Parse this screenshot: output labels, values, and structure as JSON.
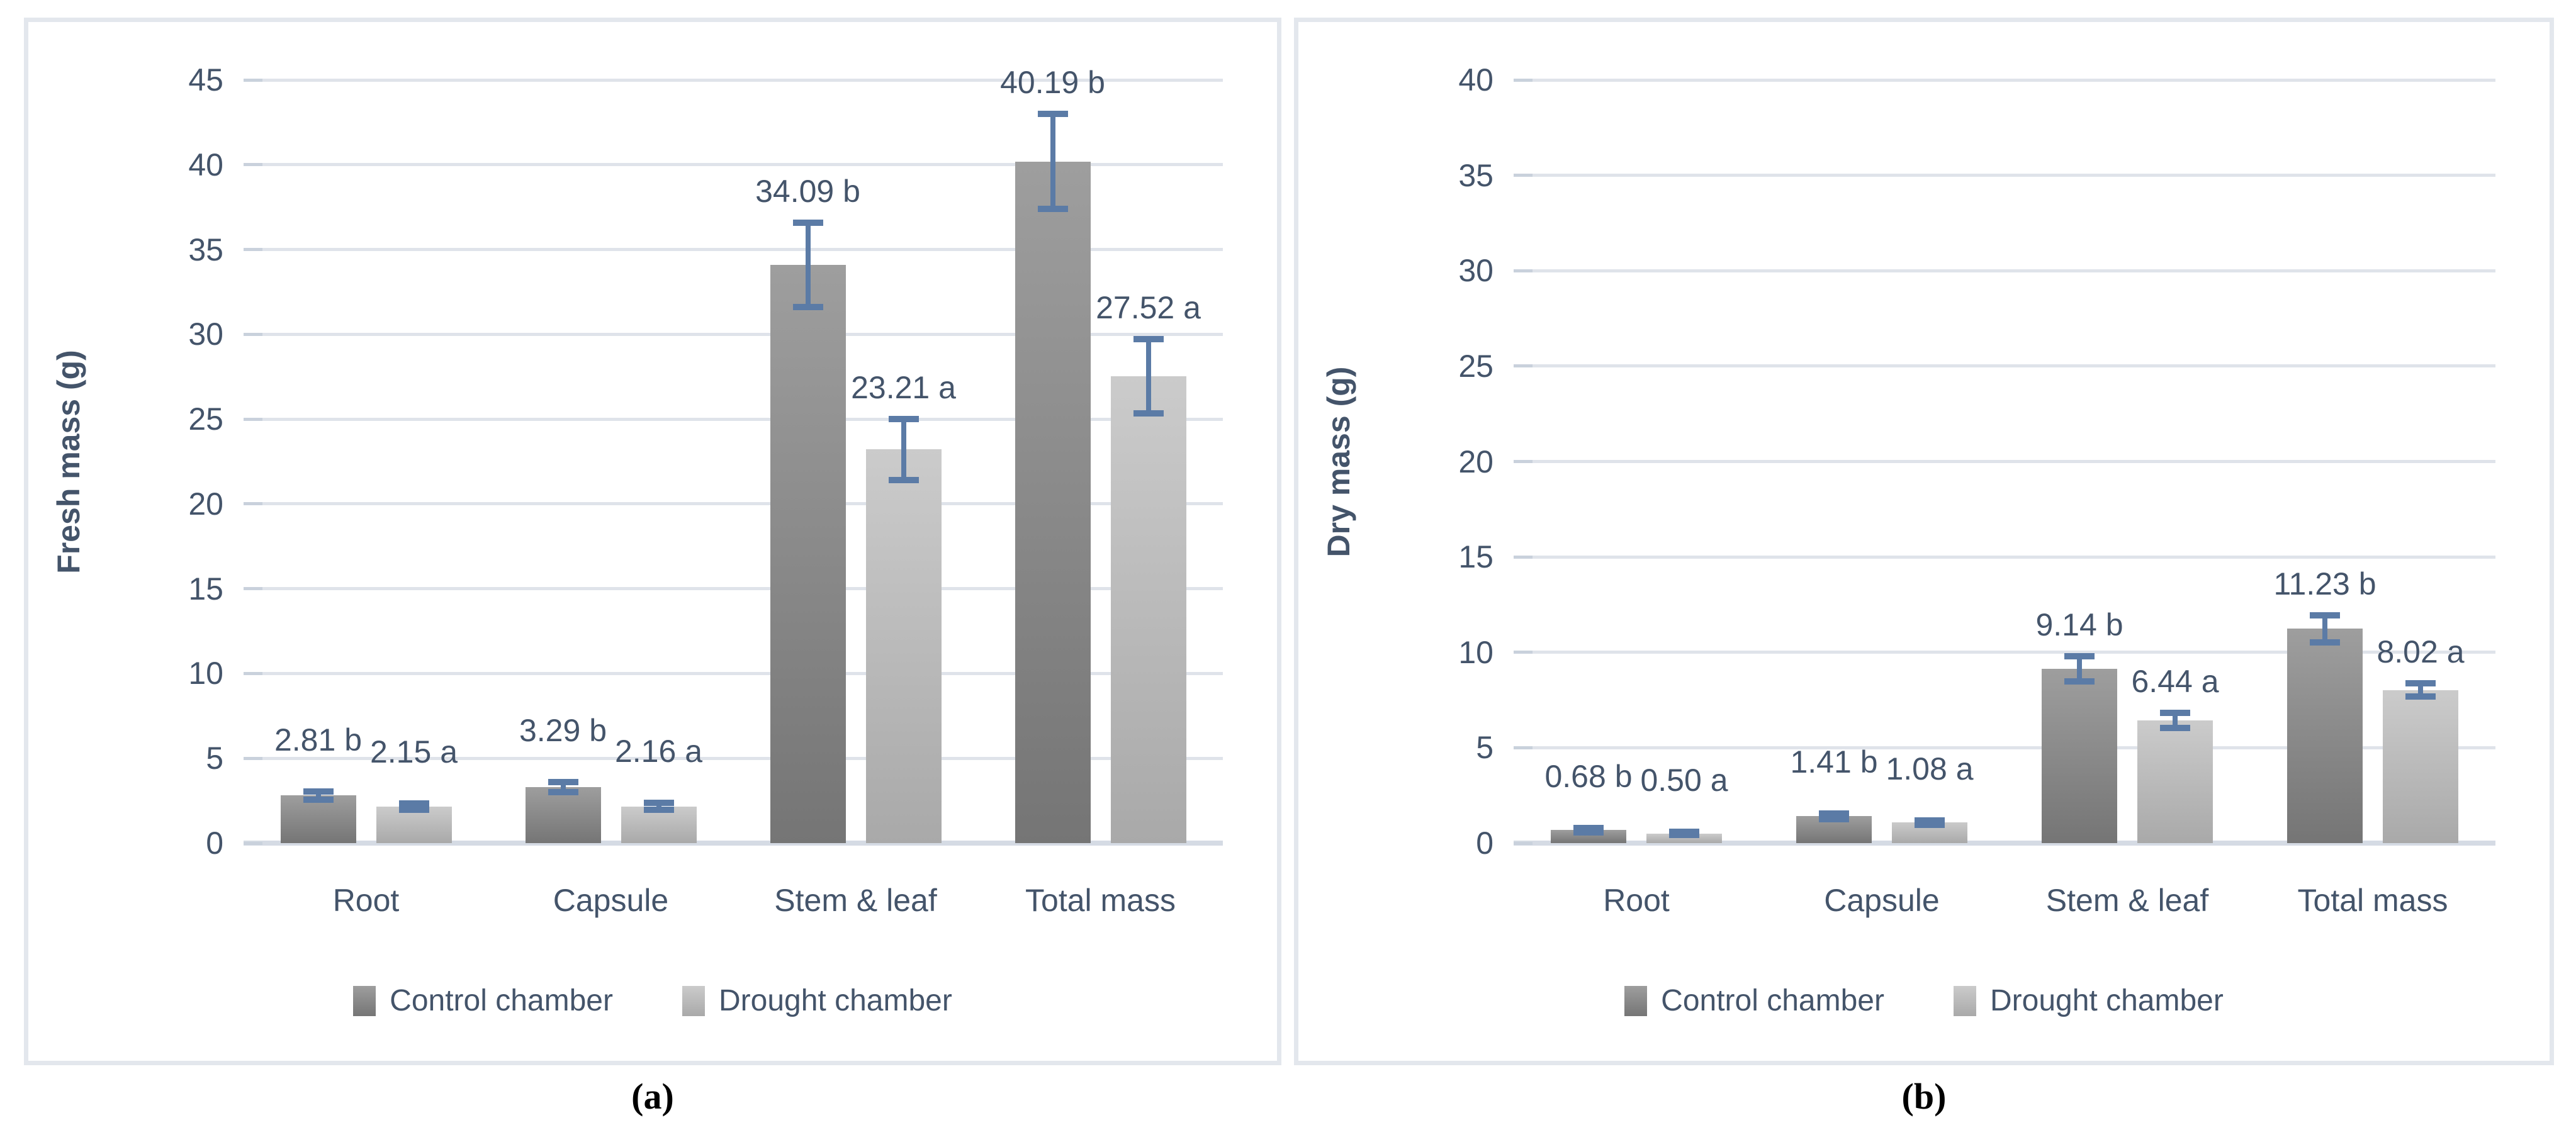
{
  "figure_type": "two-panel grouped bar chart with error bars",
  "colors": {
    "background": "#ffffff",
    "panel_border": "#e3e7ed",
    "axis_text": "#44546a",
    "caption_text": "#000000",
    "grid": "#dfe3ea",
    "grid_baseline": "#d5dbe4",
    "grid_tick": "#c9d1dc",
    "error_bar": "#5b7ba6",
    "control_bar_top": "#9e9e9e",
    "control_bar_bottom": "#757575",
    "drought_bar_top": "#cbcbcb",
    "drought_bar_bottom": "#a9a9a9"
  },
  "chart_data": [
    {
      "type": "bar",
      "panel": "a",
      "caption": "(a)",
      "title": "",
      "xlabel": "",
      "ylabel": "Fresh mass (g)",
      "ylim": [
        0,
        45
      ],
      "ytick_step": 5,
      "ytick_labels": [
        "0",
        "5",
        "10",
        "15",
        "20",
        "25",
        "30",
        "35",
        "40",
        "45"
      ],
      "grid": true,
      "legend_position": "bottom",
      "categories": [
        "Root",
        "Capsule",
        "Stem & leaf",
        "Total mass"
      ],
      "series": [
        {
          "name": "Control chamber",
          "values": [
            2.81,
            3.29,
            34.09,
            40.19
          ],
          "errors": [
            0.25,
            0.3,
            2.5,
            2.8
          ],
          "data_labels": [
            "2.81 b",
            "3.29 b",
            "34.09 b",
            "40.19 b"
          ]
        },
        {
          "name": "Drought chamber",
          "values": [
            2.15,
            2.16,
            23.21,
            27.52
          ],
          "errors": [
            0.2,
            0.2,
            1.8,
            2.2
          ],
          "data_labels": [
            "2.15 a",
            "2.16 a",
            "23.21 a",
            "27.52 a"
          ]
        }
      ]
    },
    {
      "type": "bar",
      "panel": "b",
      "caption": "(b)",
      "title": "",
      "xlabel": "",
      "ylabel": "Dry mass (g)",
      "ylim": [
        0,
        40
      ],
      "ytick_step": 5,
      "ytick_labels": [
        "0",
        "5",
        "10",
        "15",
        "20",
        "25",
        "30",
        "35",
        "40"
      ],
      "grid": true,
      "legend_position": "bottom",
      "categories": [
        "Root",
        "Capsule",
        "Stem & leaf",
        "Total mass"
      ],
      "series": [
        {
          "name": "Control chamber",
          "values": [
            0.68,
            1.41,
            9.14,
            11.23
          ],
          "errors": [
            0.12,
            0.15,
            0.65,
            0.7
          ],
          "data_labels": [
            "0.68 b",
            "1.41 b",
            "9.14 b",
            "11.23 b"
          ]
        },
        {
          "name": "Drought chamber",
          "values": [
            0.5,
            1.08,
            6.44,
            8.02
          ],
          "errors": [
            0.08,
            0.12,
            0.4,
            0.35
          ],
          "data_labels": [
            "0.50 a",
            "1.08 a",
            "6.44 a",
            "8.02 a"
          ]
        }
      ]
    }
  ]
}
